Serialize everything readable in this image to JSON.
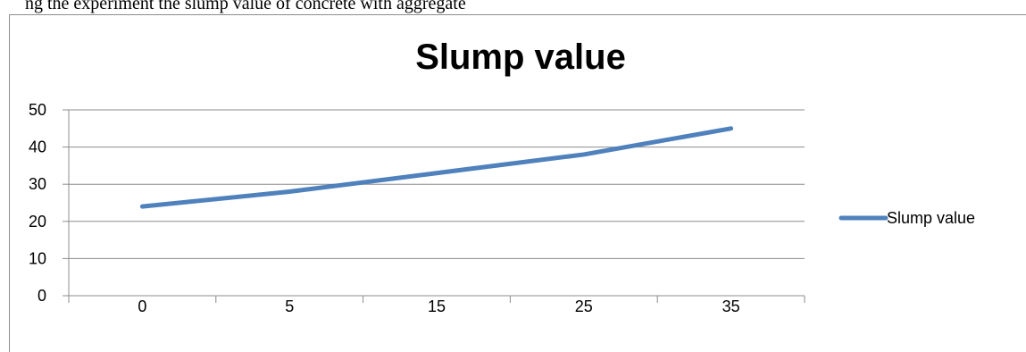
{
  "caption": {
    "text": "ng the experiment the slump value of concrete with aggregate"
  },
  "chart_data": {
    "type": "line",
    "title": "Slump value",
    "xlabel": "",
    "ylabel": "",
    "categories": [
      "0",
      "5",
      "15",
      "25",
      "35"
    ],
    "series": [
      {
        "name": "Slump value",
        "values": [
          24,
          28,
          33,
          38,
          45
        ],
        "color": "#4f81bd"
      }
    ],
    "ylim": [
      0,
      50
    ],
    "yticks": [
      0,
      10,
      20,
      30,
      40,
      50
    ],
    "grid": true,
    "legend": "right"
  }
}
